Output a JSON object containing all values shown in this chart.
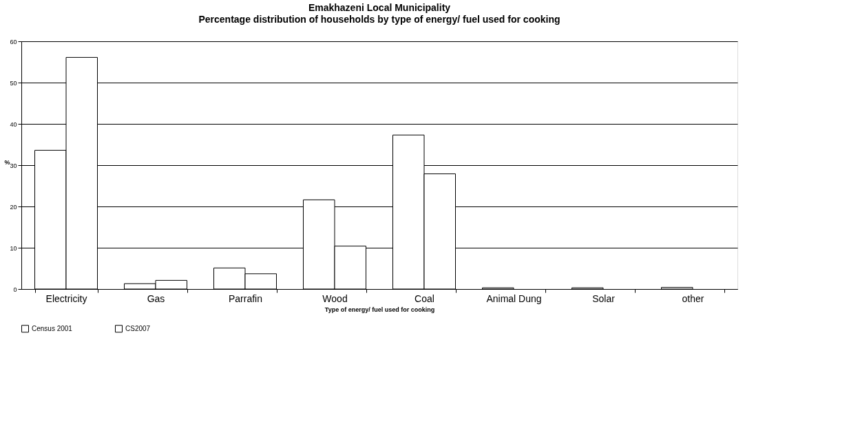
{
  "chart_data": {
    "type": "bar",
    "title": "Emakhazeni Local Municipality",
    "subtitle": "Percentage distribution of households by type of energy/ fuel used for cooking",
    "xlabel": "Type of energy/ fuel used for cooking",
    "ylabel": "%",
    "categories": [
      "Electricity",
      "Gas",
      "Parrafin",
      "Wood",
      "Coal",
      "Animal Dung",
      "Solar",
      "other"
    ],
    "series": [
      {
        "name": "Census 2001",
        "color": "#ffffff",
        "values": [
          33.6,
          1.3,
          5.1,
          21.6,
          37.3,
          0.3,
          0.3,
          0.4
        ]
      },
      {
        "name": "CS2007",
        "color": "#ffffff",
        "values": [
          56.1,
          2.1,
          3.7,
          10.4,
          27.9,
          null,
          null,
          null
        ]
      }
    ],
    "ylim": [
      0,
      60
    ],
    "yticks": [
      0,
      10,
      20,
      30,
      40,
      50,
      60
    ],
    "grid": "y",
    "legend": "bottom"
  }
}
